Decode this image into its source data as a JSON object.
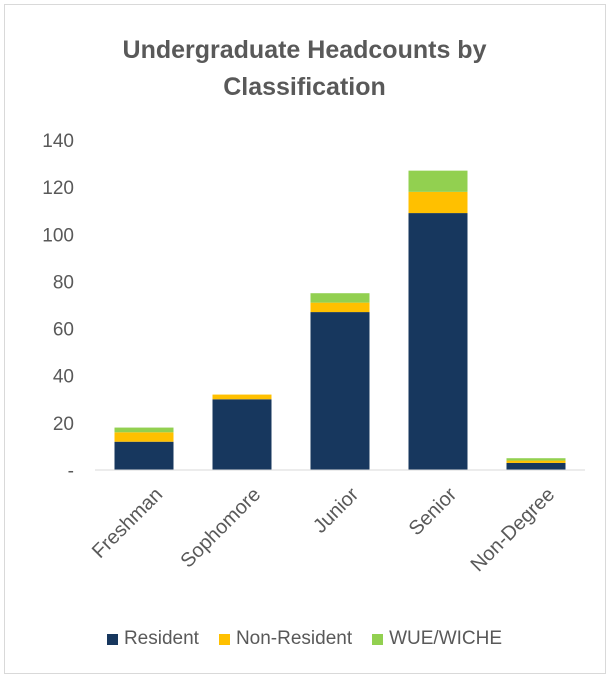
{
  "chart_data": {
    "type": "bar",
    "stacked": true,
    "title_lines": [
      "Undergraduate Headcounts by",
      "Classification"
    ],
    "categories": [
      "Freshman",
      "Sophomore",
      "Junior",
      "Senior",
      "Non-Degree"
    ],
    "series": [
      {
        "name": "Resident",
        "color": "#17375e",
        "values": [
          12,
          30,
          67,
          109,
          3
        ]
      },
      {
        "name": "Non-Resident",
        "color": "#ffc000",
        "values": [
          4,
          2,
          4,
          9,
          1
        ]
      },
      {
        "name": "WUE/WICHE",
        "color": "#92d050",
        "values": [
          2,
          0,
          4,
          9,
          1
        ]
      }
    ],
    "ylim": [
      0,
      140
    ],
    "y_ticks": [
      0,
      20,
      40,
      60,
      80,
      100,
      120,
      140
    ],
    "y_tick_labels": [
      "-",
      "20",
      "40",
      "60",
      "80",
      "100",
      "120",
      "140"
    ],
    "gridlines": false,
    "legend_position": "bottom"
  }
}
